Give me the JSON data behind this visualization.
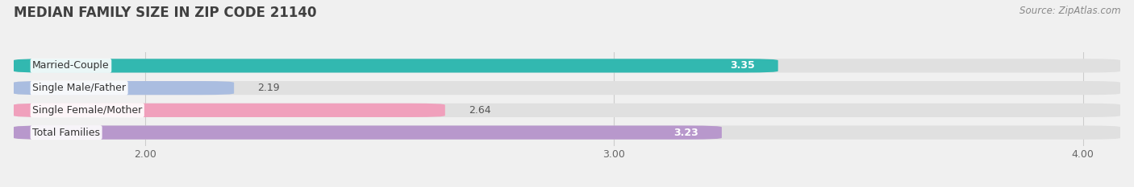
{
  "title": "MEDIAN FAMILY SIZE IN ZIP CODE 21140",
  "source": "Source: ZipAtlas.com",
  "categories": [
    "Married-Couple",
    "Single Male/Father",
    "Single Female/Mother",
    "Total Families"
  ],
  "values": [
    3.35,
    2.19,
    2.64,
    3.23
  ],
  "bar_colors": [
    "#32b8b0",
    "#aabde0",
    "#f0a0bc",
    "#b898cc"
  ],
  "bar_bg_color": "#e0e0e0",
  "xlim": [
    1.72,
    4.08
  ],
  "xticks": [
    2.0,
    3.0,
    4.0
  ],
  "xtick_labels": [
    "2.00",
    "3.00",
    "4.00"
  ],
  "title_fontsize": 12,
  "label_fontsize": 9,
  "value_fontsize": 9,
  "source_fontsize": 8.5,
  "background_color": "#f0f0f0",
  "bar_height": 0.62,
  "value_inside_color": "white",
  "value_outside_color": "#555555",
  "grid_color": "#cccccc",
  "label_text_color": "#333333"
}
